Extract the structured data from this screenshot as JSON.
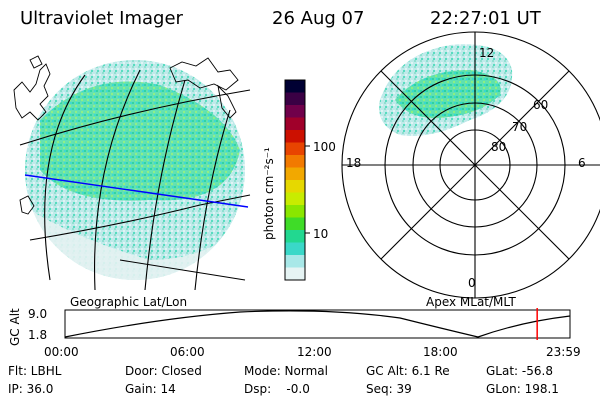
{
  "header": {
    "title": "Ultraviolet Imager",
    "date": "26 Aug 07",
    "time": "22:27:01 UT"
  },
  "colorbar": {
    "unit_label": "photon cm⁻²s⁻¹",
    "ticks": [
      "100",
      "10"
    ],
    "colors": [
      "#000033",
      "#3a0044",
      "#70004a",
      "#a0002a",
      "#cc1000",
      "#e84400",
      "#f27a00",
      "#f2a800",
      "#e6d800",
      "#c8ec00",
      "#8ae600",
      "#3fdc28",
      "#22d890",
      "#3ad8c8",
      "#a8e8e8",
      "#e6f4f4"
    ]
  },
  "left_map": {
    "label": "Geographic Lat/Lon",
    "colors": {
      "glow": "#6fe6bd",
      "glow_dense": "#2fcf9c",
      "faint": "#c8ecec",
      "track": "#0000ff"
    }
  },
  "right_map": {
    "label": "Apex MLat/MLT",
    "lat_labels": [
      "60",
      "70",
      "80"
    ],
    "mlt_labels": [
      "12",
      "18",
      "6",
      "0"
    ]
  },
  "timeline": {
    "axis_label": "GC Alt",
    "y_ticks": [
      "9.0",
      "1.8"
    ],
    "x_ticks": [
      "00:00",
      "06:00",
      "12:00",
      "18:00",
      "23:59"
    ],
    "current_fraction": 0.935,
    "marker_color": "#ff0000"
  },
  "info": {
    "filter": "Flt: LBHL",
    "ip": "IP: 36.0",
    "door": "Door: Closed",
    "gain": "Gain: 14",
    "mode": "Mode: Normal",
    "dsp": "Dsp:    -0.0",
    "gc_alt": "GC Alt: 6.1 Re",
    "seq": "Seq: 39",
    "glat": "GLat: -56.8",
    "glon": "GLon: 198.1"
  }
}
